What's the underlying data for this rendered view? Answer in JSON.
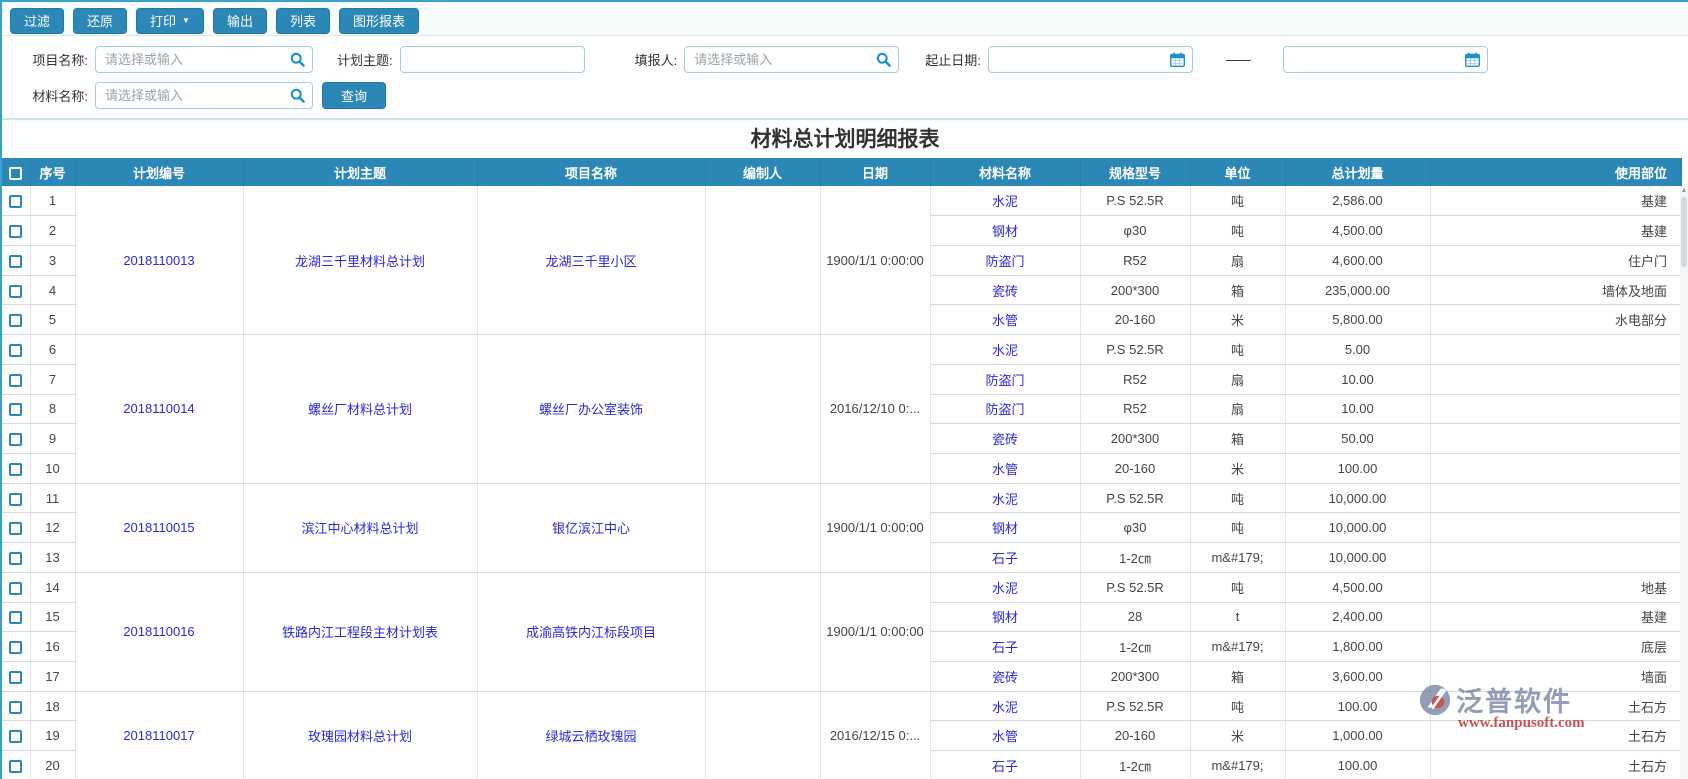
{
  "page": {
    "report_title": "材料总计划明细报表"
  },
  "toolbar": {
    "buttons": [
      {
        "id": "filter",
        "label": "过滤"
      },
      {
        "id": "restore",
        "label": "还原"
      },
      {
        "id": "print",
        "label": "打印"
      },
      {
        "id": "export",
        "label": "输出"
      },
      {
        "id": "list",
        "label": "列表"
      },
      {
        "id": "graph-report",
        "label": "图形报表"
      }
    ],
    "print_caret": "▼"
  },
  "filters": {
    "project_name": {
      "label": "项目名称:",
      "value": "",
      "placeholder": "请选择或输入"
    },
    "plan_subject": {
      "label": "计划主题:",
      "value": "",
      "placeholder": ""
    },
    "reporter": {
      "label": "填报人:",
      "value": "",
      "placeholder": "请选择或输入"
    },
    "date_range": {
      "label": "起止日期:",
      "start_value": "",
      "end_value": "",
      "separator": "——"
    },
    "material_name": {
      "label": "材料名称:",
      "value": "",
      "placeholder": "请选择或输入"
    },
    "search_button_label": "查询"
  },
  "icons": {
    "search": "magnifier-icon",
    "calendar": "calendar-icon",
    "scroll_up_arrow": "▲"
  },
  "table": {
    "columns": [
      "序号",
      "计划编号",
      "计划主题",
      "项目名称",
      "编制人",
      "日期",
      "材料名称",
      "规格型号",
      "单位",
      "总计划量",
      "使用部位"
    ],
    "groups": [
      {
        "plan_no": "2018110013",
        "subject": "龙湖三千里材料总计划",
        "project": "龙湖三千里小区",
        "author": "",
        "date": "1900/1/1 0:00:00",
        "materials": [
          {
            "name": "水泥",
            "spec": "P.S 52.5R",
            "unit": "吨",
            "qty": "2,586.00",
            "location": "基建"
          },
          {
            "name": "钢材",
            "spec": "φ30",
            "unit": "吨",
            "qty": "4,500.00",
            "location": "基建"
          },
          {
            "name": "防盗门",
            "spec": "R52",
            "unit": "扇",
            "qty": "4,600.00",
            "location": "住户门"
          },
          {
            "name": "瓷砖",
            "spec": "200*300",
            "unit": "箱",
            "qty": "235,000.00",
            "location": "墙体及地面"
          },
          {
            "name": "水管",
            "spec": "20-160",
            "unit": "米",
            "qty": "5,800.00",
            "location": "水电部分"
          }
        ]
      },
      {
        "plan_no": "2018110014",
        "subject": "螺丝厂材料总计划",
        "project": "螺丝厂办公室装饰",
        "author": "",
        "date": "2016/12/10 0:...",
        "materials": [
          {
            "name": "水泥",
            "spec": "P.S 52.5R",
            "unit": "吨",
            "qty": "5.00",
            "location": ""
          },
          {
            "name": "防盗门",
            "spec": "R52",
            "unit": "扇",
            "qty": "10.00",
            "location": ""
          },
          {
            "name": "防盗门",
            "spec": "R52",
            "unit": "扇",
            "qty": "10.00",
            "location": ""
          },
          {
            "name": "瓷砖",
            "spec": "200*300",
            "unit": "箱",
            "qty": "50.00",
            "location": ""
          },
          {
            "name": "水管",
            "spec": "20-160",
            "unit": "米",
            "qty": "100.00",
            "location": ""
          }
        ]
      },
      {
        "plan_no": "2018110015",
        "subject": "滨江中心材料总计划",
        "project": "银亿滨江中心",
        "author": "",
        "date": "1900/1/1 0:00:00",
        "materials": [
          {
            "name": "水泥",
            "spec": "P.S 52.5R",
            "unit": "吨",
            "qty": "10,000.00",
            "location": ""
          },
          {
            "name": "钢材",
            "spec": "φ30",
            "unit": "吨",
            "qty": "10,000.00",
            "location": ""
          },
          {
            "name": "石子",
            "spec": "1-2㎝",
            "unit": "m&#179;",
            "qty": "10,000.00",
            "location": ""
          }
        ]
      },
      {
        "plan_no": "2018110016",
        "subject": "铁路内江工程段主材计划表",
        "project": "成渝高铁内江标段项目",
        "author": "",
        "date": "1900/1/1 0:00:00",
        "materials": [
          {
            "name": "水泥",
            "spec": "P.S 52.5R",
            "unit": "吨",
            "qty": "4,500.00",
            "location": "地基"
          },
          {
            "name": "钢材",
            "spec": "28",
            "unit": "t",
            "qty": "2,400.00",
            "location": "基建"
          },
          {
            "name": "石子",
            "spec": "1-2㎝",
            "unit": "m&#179;",
            "qty": "1,800.00",
            "location": "底层"
          },
          {
            "name": "瓷砖",
            "spec": "200*300",
            "unit": "箱",
            "qty": "3,600.00",
            "location": "墙面"
          }
        ]
      },
      {
        "plan_no": "2018110017",
        "subject": "玫瑰园材料总计划",
        "project": "绿城云栖玫瑰园",
        "author": "",
        "date": "2016/12/15 0:...",
        "materials": [
          {
            "name": "水泥",
            "spec": "P.S 52.5R",
            "unit": "吨",
            "qty": "100.00",
            "location": "土石方"
          },
          {
            "name": "水管",
            "spec": "20-160",
            "unit": "米",
            "qty": "1,000.00",
            "location": "土石方"
          },
          {
            "name": "石子",
            "spec": "1-2㎝",
            "unit": "m&#179;",
            "qty": "100.00",
            "location": "土石方"
          }
        ]
      }
    ]
  },
  "watermark": {
    "brand": "泛普软件",
    "url": "www.fanpusoft.com"
  },
  "colors": {
    "accent": "#2b87b6",
    "header_bg": "#2b87b6",
    "link": "#2c28dd",
    "top_border": "#38a0ce",
    "watermark_brand": "#8391ab",
    "watermark_url": "#c23b3b"
  }
}
